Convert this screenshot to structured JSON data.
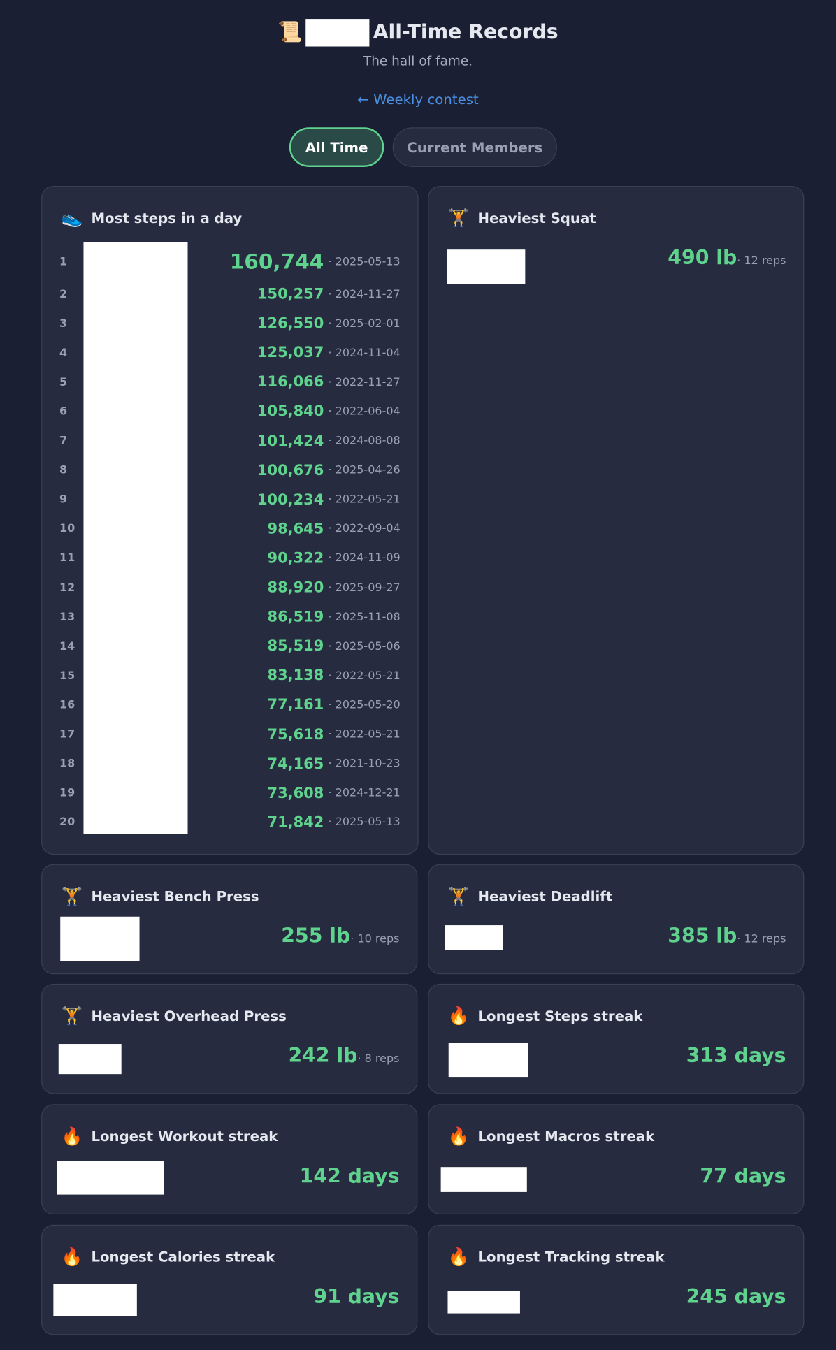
{
  "header": {
    "icon": "📜",
    "title": "All-Time Records",
    "subtitle": "The hall of fame.",
    "back_link": "← Weekly contest"
  },
  "tabs": [
    {
      "label": "All Time",
      "active": true
    },
    {
      "label": "Current Members",
      "active": false
    }
  ],
  "steps_card": {
    "icon": "👟",
    "title": "Most steps in a day",
    "rows": [
      {
        "rank": 1,
        "value": "160,744",
        "date": "· 2025-05-13"
      },
      {
        "rank": 2,
        "value": "150,257",
        "date": "· 2024-11-27"
      },
      {
        "rank": 3,
        "value": "126,550",
        "date": "· 2025-02-01"
      },
      {
        "rank": 4,
        "value": "125,037",
        "date": "· 2024-11-04"
      },
      {
        "rank": 5,
        "value": "116,066",
        "date": "· 2022-11-27"
      },
      {
        "rank": 6,
        "value": "105,840",
        "date": "· 2022-06-04"
      },
      {
        "rank": 7,
        "value": "101,424",
        "date": "· 2024-08-08"
      },
      {
        "rank": 8,
        "value": "100,676",
        "date": "· 2025-04-26"
      },
      {
        "rank": 9,
        "value": "100,234",
        "date": "· 2022-05-21"
      },
      {
        "rank": 10,
        "value": "98,645",
        "date": "· 2022-09-04"
      },
      {
        "rank": 11,
        "value": "90,322",
        "date": "· 2024-11-09"
      },
      {
        "rank": 12,
        "value": "88,920",
        "date": "· 2025-09-27"
      },
      {
        "rank": 13,
        "value": "86,519",
        "date": "· 2025-11-08"
      },
      {
        "rank": 14,
        "value": "85,519",
        "date": "· 2025-05-06"
      },
      {
        "rank": 15,
        "value": "83,138",
        "date": "· 2022-05-21"
      },
      {
        "rank": 16,
        "value": "77,161",
        "date": "· 2025-05-20"
      },
      {
        "rank": 17,
        "value": "75,618",
        "date": "· 2022-05-21"
      },
      {
        "rank": 18,
        "value": "74,165",
        "date": "· 2021-10-23"
      },
      {
        "rank": 19,
        "value": "73,608",
        "date": "· 2024-12-21"
      },
      {
        "rank": 20,
        "value": "71,842",
        "date": "· 2025-05-13"
      }
    ]
  },
  "cards": [
    {
      "icon": "🏋️",
      "title": "Heaviest Squat",
      "value": "490 lb",
      "detail": "· 12 reps"
    },
    {
      "icon": "🏋️",
      "title": "Heaviest Bench Press",
      "value": "255 lb",
      "detail": "· 10 reps"
    },
    {
      "icon": "🏋️",
      "title": "Heaviest Deadlift",
      "value": "385 lb",
      "detail": "· 12 reps"
    },
    {
      "icon": "🏋️",
      "title": "Heaviest Overhead Press",
      "value": "242 lb",
      "detail": "· 8 reps"
    },
    {
      "icon": "🔥",
      "title": "Longest Steps streak",
      "value": "313 days"
    },
    {
      "icon": "🔥",
      "title": "Longest Workout streak",
      "value": "142 days"
    },
    {
      "icon": "🔥",
      "title": "Longest Macros streak",
      "value": "77 days"
    },
    {
      "icon": "🔥",
      "title": "Longest Calories streak",
      "value": "91 days"
    },
    {
      "icon": "🔥",
      "title": "Longest Tracking streak",
      "value": "245 days"
    }
  ]
}
